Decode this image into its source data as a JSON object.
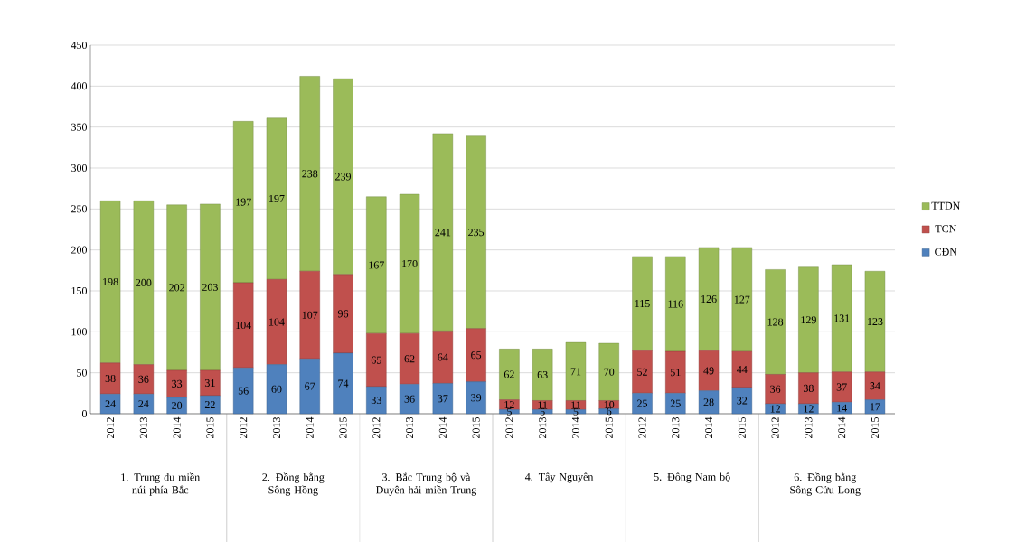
{
  "chart_data": {
    "type": "bar",
    "stacked": true,
    "categories": [
      "2012",
      "2013",
      "2014",
      "2015",
      "2012",
      "2013",
      "2014",
      "2015",
      "2012",
      "2013",
      "2014",
      "2015",
      "2012",
      "2013",
      "2014",
      "2015",
      "2012",
      "2013",
      "2014",
      "2015",
      "2012",
      "2013",
      "2014",
      "2015"
    ],
    "series": [
      {
        "name": "CĐN",
        "color": "#4f81bd",
        "values": [
          24,
          24,
          20,
          22,
          56,
          60,
          67,
          74,
          33,
          36,
          37,
          39,
          5,
          5,
          5,
          6,
          25,
          25,
          28,
          32,
          12,
          12,
          14,
          17
        ]
      },
      {
        "name": "TCN",
        "color": "#c0504d",
        "values": [
          38,
          36,
          33,
          31,
          104,
          104,
          107,
          96,
          65,
          62,
          64,
          65,
          12,
          11,
          11,
          10,
          52,
          51,
          49,
          44,
          36,
          38,
          37,
          34
        ]
      },
      {
        "name": "TTDN",
        "color": "#9bbb59",
        "values": [
          198,
          200,
          202,
          203,
          197,
          197,
          238,
          239,
          167,
          170,
          241,
          235,
          62,
          63,
          71,
          70,
          115,
          116,
          126,
          127,
          128,
          129,
          131,
          123
        ]
      }
    ],
    "annotations": [
      "1. Trung du miền núi phía Bắc",
      "2. Đồng bằng Sông Hồng",
      "3. Bắc Trung bộ và Duyên hải miền Trung",
      "4. Tây Nguyên",
      "5. Đông Nam bộ",
      "6. Đồng bằng Sông Cửu Long"
    ],
    "ylim": [
      0,
      450
    ],
    "yticks": [
      0,
      50,
      100,
      150,
      200,
      250,
      300,
      350,
      400,
      450
    ],
    "grid": "y",
    "legend": "right",
    "data_labels": true
  }
}
